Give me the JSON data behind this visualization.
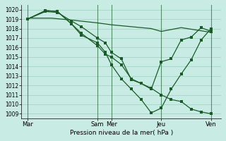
{
  "background_color": "#c8ece4",
  "grid_color": "#9fcfbf",
  "line_color": "#1a5c28",
  "xlabel": "Pression niveau de la mer( hPa )",
  "ylim": [
    1008.5,
    1020.5
  ],
  "yticks": [
    1009,
    1010,
    1011,
    1012,
    1013,
    1014,
    1015,
    1016,
    1017,
    1018,
    1019,
    1020
  ],
  "xlim": [
    0,
    10
  ],
  "day_labels": [
    "Mar",
    "Sam",
    "Mer",
    "Jeu",
    "Ven"
  ],
  "day_positions": [
    0.3,
    3.8,
    4.5,
    7.0,
    9.5
  ],
  "vline_positions": [
    0.3,
    3.8,
    4.5,
    7.0,
    9.5
  ],
  "series": [
    {
      "x": [
        0.3,
        1.5,
        2.5,
        3.8,
        4.5,
        5.5,
        6.5,
        7.0,
        8.0,
        9.5
      ],
      "y": [
        1019.1,
        1019.1,
        1018.9,
        1018.6,
        1018.4,
        1018.2,
        1018.0,
        1017.7,
        1018.1,
        1017.6
      ],
      "marker": false
    },
    {
      "x": [
        0.3,
        1.2,
        1.8,
        2.5,
        3.0,
        3.8,
        4.2,
        4.5,
        5.0,
        5.5,
        6.0,
        6.5,
        7.0,
        7.5,
        8.0,
        8.5,
        9.0,
        9.5
      ],
      "y": [
        1019.0,
        1019.8,
        1019.7,
        1018.8,
        1018.2,
        1017.0,
        1016.5,
        1015.5,
        1014.8,
        1012.6,
        1012.2,
        1011.7,
        1011.0,
        1010.5,
        1010.3,
        1009.5,
        1009.2,
        1009.0
      ],
      "marker": true
    },
    {
      "x": [
        0.3,
        1.2,
        1.8,
        2.5,
        3.0,
        3.8,
        4.2,
        4.5,
        5.0,
        5.5,
        6.0,
        6.5,
        7.0,
        7.5,
        8.0,
        8.5,
        9.0,
        9.5
      ],
      "y": [
        1019.0,
        1019.9,
        1019.8,
        1018.5,
        1017.5,
        1016.2,
        1015.3,
        1015.0,
        1014.2,
        1012.7,
        1012.2,
        1011.6,
        1014.5,
        1014.8,
        1016.8,
        1017.1,
        1018.1,
        1017.7
      ],
      "marker": true
    },
    {
      "x": [
        0.3,
        1.2,
        1.8,
        2.5,
        3.0,
        3.8,
        4.2,
        4.5,
        5.0,
        5.5,
        6.0,
        6.5,
        7.0,
        7.5,
        8.0,
        8.5,
        9.0,
        9.5
      ],
      "y": [
        1019.0,
        1019.9,
        1019.8,
        1018.5,
        1017.3,
        1016.5,
        1015.5,
        1014.2,
        1012.7,
        1011.6,
        1010.5,
        1009.1,
        1009.6,
        1011.6,
        1013.2,
        1014.7,
        1016.8,
        1018.0
      ],
      "marker": true
    }
  ]
}
